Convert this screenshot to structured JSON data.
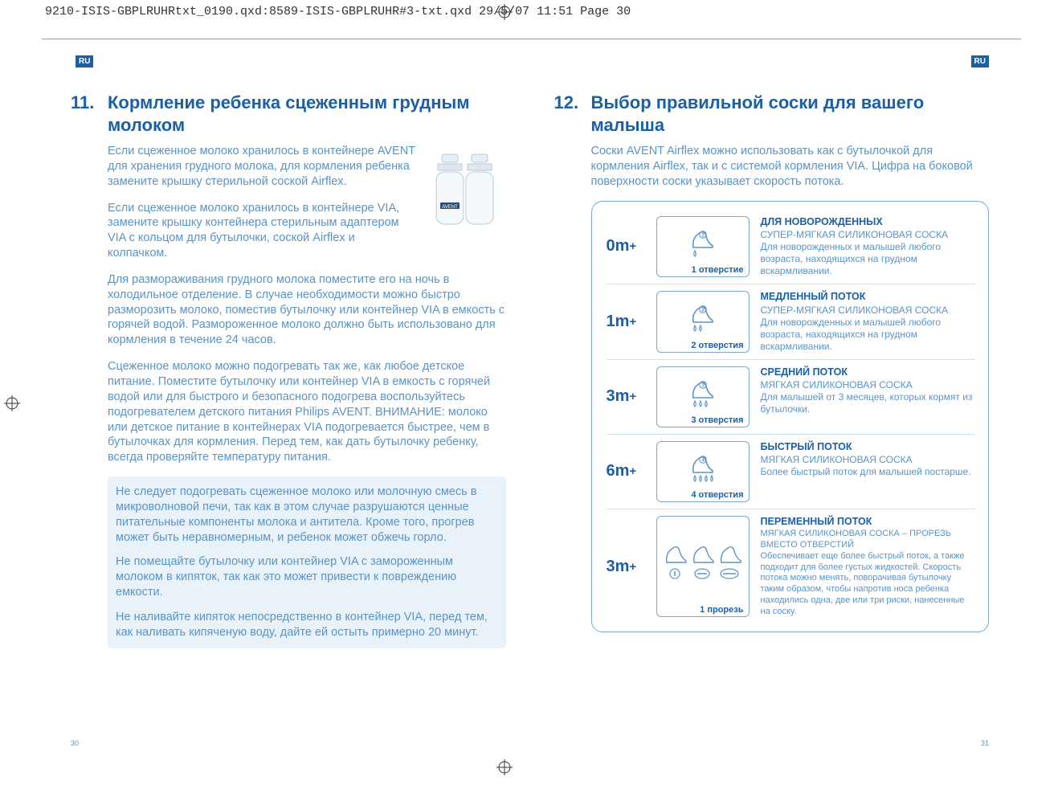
{
  "header_line": "9210-ISIS-GBPLRUHRtxt_0190.qxd:8589-ISIS-GBPLRUHR#3-txt.qxd  29/5/07  11:51  Page 30",
  "lang_badge": "RU",
  "page_left_num": "30",
  "page_right_num": "31",
  "colors": {
    "primary": "#1b5fa6",
    "body": "#5a94c7",
    "tint_bg": "#eaf2f9",
    "border": "#7aa8cf"
  },
  "left": {
    "num": "11.",
    "title": "Кормление ребенка сцеженным грудным молоком",
    "p1": "Если сцеженное молоко хранилось в контейнере AVENT  для хранения грудного молока, для кормления ребенка замените крышку стерильной соской Airflex.",
    "p2": "Если сцеженное молоко хранилось в контейнере VIA, замените крышку контейнера стерильным адаптером VIA с кольцом для бутылочки, соской Airflex и колпачком.",
    "p3": "Для размораживания грудного молока поместите его на ночь в холодильное отделение. В случае необходимости можно быстро разморозить молоко, поместив бутылочку или контейнер VIA в емкость с горячей водой. Размороженное молоко должно быть использовано для кормления в течение 24 часов.",
    "p4": "Сцеженное молоко можно подогревать так же, как любое детское питание. Поместите бутылочку или контейнер VIA в емкость с горячей водой или для быстрого и безопасного подогрева воспользуйтесь подогревателем детского питания Philips AVENT. ВНИМАНИЕ: молоко или детское питание в контейнерах VIA подогревается быстрее, чем в бутылочках для кормления. Перед тем, как дать бутылочку ребенку, всегда проверяйте температуру питания.",
    "warn1": "Не следует подогревать сцеженное молоко или молочную смесь в микроволновой печи, так как в этом случае разрушаются ценные питательные компоненты молока и антитела. Кроме того, прогрев может быть неравномерным, и ребенок может обжечь горло.",
    "warn2": "Не помещайте бутылочку или контейнер VIA с замороженным молоком в кипяток, так как это может привести к повреждению емкости.",
    "warn3": "Не наливайте кипяток непосредственно в контейнер VIA, перед тем, как наливать кипяченую воду, дайте ей остыть примерно 20 минут."
  },
  "right": {
    "num": "12.",
    "title": "Выбор правильной соски для вашего малыша",
    "intro": "Соски AVENT Airflex можно использовать как с бутылочкой для кормления Airflex, так и с системой кормления VIA. Цифра на боковой поверхности соски указывает скорость потока.",
    "rows": [
      {
        "age": "0m",
        "holes_num": 1,
        "holes_label": "1 отверстие",
        "title": "ДЛЯ НОВОРОЖДЕННЫХ",
        "sub": "СУПЕР-МЯГКАЯ СИЛИКОНОВАЯ СОСКА",
        "body": "Для новорожденных и малышей любого возраста, находящихся на грудном вскармливании."
      },
      {
        "age": "1m",
        "holes_num": 2,
        "holes_label": "2 отверстия",
        "title": "МЕДЛЕННЫЙ ПОТОК",
        "sub": "СУПЕР-МЯГКАЯ СИЛИКОНОВАЯ СОСКА",
        "body": "Для новорожденных и малышей любого возраста, находящихся на грудном вскармливании."
      },
      {
        "age": "3m",
        "holes_num": 3,
        "holes_label": "3 отверстия",
        "title": "СРЕДНИЙ ПОТОК",
        "sub": "МЯГКАЯ СИЛИКОНОВАЯ СОСКА",
        "body": "Для малышей от 3 месяцев, которых кормят из бутылочки."
      },
      {
        "age": "6m",
        "holes_num": 4,
        "holes_label": "4 отверстия",
        "title": "БЫСТРЫЙ ПОТОК",
        "sub": "МЯГКАЯ СИЛИКОНОВАЯ СОСКА",
        "body": "Более быстрый поток для малышей постарше."
      },
      {
        "age": "3m",
        "holes_label": "1 прорезь",
        "variable": true,
        "title": "ПЕРЕМЕННЫЙ ПОТОК",
        "sub": "МЯГКАЯ СИЛИКОНОВАЯ СОСКА – ПРОРЕЗЬ ВМЕСТО ОТВЕРСТИЙ",
        "body": "Обеспечивает еще более быстрый поток, а также подходит для более густых жидкостей. Скорость потока можно менять, поворачивая бутылочку таким образом, чтобы напротив носа ребенка находились одна, две или три риски, нанесенные на соску."
      }
    ]
  }
}
